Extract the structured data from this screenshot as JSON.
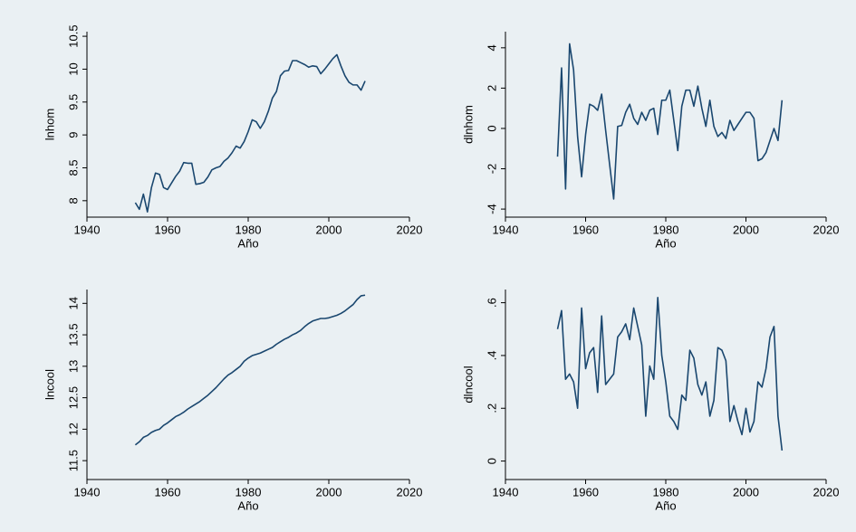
{
  "chart_data": [
    {
      "type": "line",
      "ylabel": "lnhom",
      "xlabel": "Año",
      "color": "#1a476f",
      "x": [
        1952,
        1953,
        1954,
        1955,
        1956,
        1957,
        1958,
        1959,
        1960,
        1961,
        1962,
        1963,
        1964,
        1965,
        1966,
        1967,
        1968,
        1969,
        1970,
        1971,
        1972,
        1973,
        1974,
        1975,
        1976,
        1977,
        1978,
        1979,
        1980,
        1981,
        1982,
        1983,
        1984,
        1985,
        1986,
        1987,
        1988,
        1989,
        1990,
        1991,
        1992,
        1993,
        1994,
        1995,
        1996,
        1997,
        1998,
        1999,
        2000,
        2001,
        2002,
        2003,
        2004,
        2005,
        2006,
        2007,
        2008,
        2009
      ],
      "values": [
        7.97,
        7.87,
        8.1,
        7.83,
        8.2,
        8.42,
        8.4,
        8.2,
        8.17,
        8.27,
        8.37,
        8.45,
        8.58,
        8.57,
        8.57,
        8.25,
        8.26,
        8.28,
        8.36,
        8.47,
        8.5,
        8.52,
        8.6,
        8.65,
        8.73,
        8.83,
        8.8,
        8.9,
        9.05,
        9.23,
        9.2,
        9.1,
        9.2,
        9.36,
        9.56,
        9.66,
        9.9,
        9.97,
        9.98,
        10.13,
        10.13,
        10.1,
        10.07,
        10.03,
        10.05,
        10.04,
        9.93,
        10.0,
        10.08,
        10.16,
        10.22,
        10.05,
        9.9,
        9.8,
        9.76,
        9.76,
        9.68,
        9.82
      ],
      "xlim": [
        1940,
        2020
      ],
      "xticks": [
        1940,
        1960,
        1980,
        2000,
        2020
      ],
      "ylim": [
        7.75,
        10.57
      ],
      "yticks": [
        8,
        8.5,
        9,
        9.5,
        10,
        10.5
      ]
    },
    {
      "type": "line",
      "ylabel": "dlnhom",
      "xlabel": "Año",
      "color": "#1a476f",
      "x": [
        1953,
        1954,
        1955,
        1956,
        1957,
        1958,
        1959,
        1960,
        1961,
        1962,
        1963,
        1964,
        1965,
        1966,
        1967,
        1968,
        1969,
        1970,
        1971,
        1972,
        1973,
        1974,
        1975,
        1976,
        1977,
        1978,
        1979,
        1980,
        1981,
        1982,
        1983,
        1984,
        1985,
        1986,
        1987,
        1988,
        1989,
        1990,
        1991,
        1992,
        1993,
        1994,
        1995,
        1996,
        1997,
        1998,
        1999,
        2000,
        2001,
        2002,
        2003,
        2004,
        2005,
        2006,
        2007,
        2008,
        2009
      ],
      "values": [
        -1.4,
        3.0,
        -3.0,
        4.2,
        2.9,
        -0.4,
        -2.4,
        -0.3,
        1.2,
        1.1,
        0.9,
        1.7,
        -0.1,
        -1.8,
        -3.5,
        0.1,
        0.15,
        0.8,
        1.2,
        0.5,
        0.2,
        0.8,
        0.4,
        0.9,
        1.0,
        -0.3,
        1.4,
        1.4,
        1.9,
        0.4,
        -1.1,
        1.1,
        1.9,
        1.9,
        1.1,
        2.1,
        1.0,
        0.1,
        1.4,
        0.1,
        -0.4,
        -0.2,
        -0.5,
        0.4,
        -0.1,
        0.2,
        0.5,
        0.8,
        0.8,
        0.5,
        -1.6,
        -1.5,
        -1.2,
        -0.6,
        0.0,
        -0.6,
        1.4
      ],
      "xlim": [
        1940,
        2020
      ],
      "xticks": [
        1940,
        1960,
        1980,
        2000,
        2020
      ],
      "ylim": [
        -4.4,
        4.8
      ],
      "yticks": [
        -4,
        -2,
        0,
        2,
        4
      ]
    },
    {
      "type": "line",
      "ylabel": "lncool",
      "xlabel": "Año",
      "color": "#1a476f",
      "x": [
        1952,
        1953,
        1954,
        1955,
        1956,
        1957,
        1958,
        1959,
        1960,
        1961,
        1962,
        1963,
        1964,
        1965,
        1966,
        1967,
        1968,
        1969,
        1970,
        1971,
        1972,
        1973,
        1974,
        1975,
        1976,
        1977,
        1978,
        1979,
        1980,
        1981,
        1982,
        1983,
        1984,
        1985,
        1986,
        1987,
        1988,
        1989,
        1990,
        1991,
        1992,
        1993,
        1994,
        1995,
        1996,
        1997,
        1998,
        1999,
        2000,
        2001,
        2002,
        2003,
        2004,
        2005,
        2006,
        2007,
        2008,
        2009
      ],
      "values": [
        11.75,
        11.8,
        11.87,
        11.9,
        11.95,
        11.98,
        12.0,
        12.06,
        12.1,
        12.15,
        12.2,
        12.23,
        12.27,
        12.32,
        12.36,
        12.4,
        12.44,
        12.49,
        12.54,
        12.6,
        12.66,
        12.73,
        12.8,
        12.86,
        12.9,
        12.95,
        13.0,
        13.08,
        13.13,
        13.17,
        13.19,
        13.21,
        13.24,
        13.27,
        13.3,
        13.35,
        13.39,
        13.43,
        13.46,
        13.5,
        13.53,
        13.57,
        13.63,
        13.68,
        13.72,
        13.74,
        13.76,
        13.76,
        13.77,
        13.79,
        13.81,
        13.84,
        13.88,
        13.93,
        13.98,
        14.06,
        14.12,
        14.13
      ],
      "xlim": [
        1940,
        2020
      ],
      "xticks": [
        1940,
        1960,
        1980,
        2000,
        2020
      ],
      "ylim": [
        11.2,
        14.22
      ],
      "yticks": [
        11.5,
        12,
        12.5,
        13,
        13.5,
        14
      ]
    },
    {
      "type": "line",
      "ylabel": "dlncool",
      "xlabel": "Año",
      "color": "#1a476f",
      "x": [
        1953,
        1954,
        1955,
        1956,
        1957,
        1958,
        1959,
        1960,
        1961,
        1962,
        1963,
        1964,
        1965,
        1966,
        1967,
        1968,
        1969,
        1970,
        1971,
        1972,
        1973,
        1974,
        1975,
        1976,
        1977,
        1978,
        1979,
        1980,
        1981,
        1982,
        1983,
        1984,
        1985,
        1986,
        1987,
        1988,
        1989,
        1990,
        1991,
        1992,
        1993,
        1994,
        1995,
        1996,
        1997,
        1998,
        1999,
        2000,
        2001,
        2002,
        2003,
        2004,
        2005,
        2006,
        2007,
        2008,
        2009
      ],
      "values": [
        0.5,
        0.57,
        0.31,
        0.33,
        0.3,
        0.2,
        0.58,
        0.35,
        0.41,
        0.43,
        0.26,
        0.55,
        0.29,
        0.31,
        0.33,
        0.47,
        0.49,
        0.52,
        0.46,
        0.58,
        0.51,
        0.44,
        0.17,
        0.36,
        0.31,
        0.62,
        0.4,
        0.3,
        0.17,
        0.15,
        0.12,
        0.25,
        0.23,
        0.42,
        0.39,
        0.29,
        0.25,
        0.3,
        0.17,
        0.23,
        0.43,
        0.42,
        0.38,
        0.15,
        0.21,
        0.15,
        0.1,
        0.2,
        0.11,
        0.15,
        0.3,
        0.28,
        0.35,
        0.47,
        0.51,
        0.17,
        0.04
      ],
      "xlim": [
        1940,
        2020
      ],
      "xticks": [
        1940,
        1960,
        1980,
        2000,
        2020
      ],
      "ylim": [
        -0.07,
        0.65
      ],
      "yticks": [
        0,
        {
          "value": 0.2,
          "label": ".2"
        },
        {
          "value": 0.4,
          "label": ".4"
        },
        {
          "value": 0.6,
          "label": ".6"
        }
      ]
    }
  ]
}
